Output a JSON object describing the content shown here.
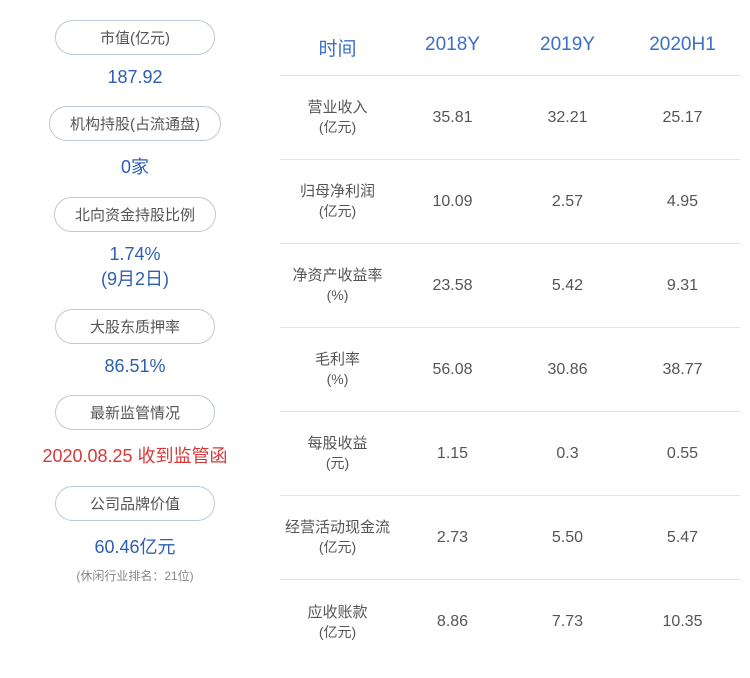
{
  "left": {
    "items": [
      {
        "label": "市值(亿元)",
        "value": "187.92",
        "color": "blue"
      },
      {
        "label": "机构持股(占流通盘)",
        "value": "0家",
        "color": "blue"
      },
      {
        "label": "北向资金持股比例",
        "value": "1.74%",
        "note": "(9月2日)",
        "color": "blue"
      },
      {
        "label": "大股东质押率",
        "value": "86.51%",
        "color": "blue"
      },
      {
        "label": "最新监管情况",
        "value": "2020.08.25 收到监管函",
        "color": "red"
      },
      {
        "label": "公司品牌价值",
        "value": "60.46亿元",
        "note": "(休闲行业排名：21位)",
        "color": "blue"
      }
    ]
  },
  "table": {
    "headers": [
      "时间",
      "2018Y",
      "2019Y",
      "2020H1"
    ],
    "rows": [
      {
        "label": "营业收入",
        "unit": "(亿元)",
        "values": [
          "35.81",
          "32.21",
          "25.17"
        ]
      },
      {
        "label": "归母净利润",
        "unit": "(亿元)",
        "values": [
          "10.09",
          "2.57",
          "4.95"
        ]
      },
      {
        "label": "净资产收益率",
        "unit": "(%)",
        "values": [
          "23.58",
          "5.42",
          "9.31"
        ]
      },
      {
        "label": "毛利率",
        "unit": "(%)",
        "values": [
          "56.08",
          "30.86",
          "38.77"
        ]
      },
      {
        "label": "每股收益",
        "unit": "(元)",
        "values": [
          "1.15",
          "0.3",
          "0.55"
        ]
      },
      {
        "label": "经营活动现金流",
        "unit": "(亿元)",
        "values": [
          "2.73",
          "5.50",
          "5.47"
        ]
      },
      {
        "label": "应收账款",
        "unit": "(亿元)",
        "values": [
          "8.86",
          "7.73",
          "10.35"
        ]
      }
    ]
  },
  "colors": {
    "header_text": "#3b6fc7",
    "cell_text": "#555555",
    "pill_border": "#bfc9d6",
    "blue_value": "#2d5fb0",
    "red_value": "#d63939",
    "divider": "#e5e5e5",
    "background": "#ffffff"
  }
}
